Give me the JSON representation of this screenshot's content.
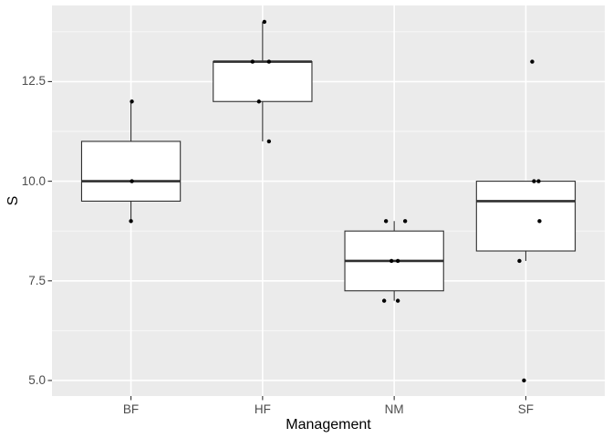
{
  "chart_data": {
    "type": "boxplot",
    "title": "",
    "x_axis": {
      "title": "Management",
      "categories": [
        "BF",
        "HF",
        "NM",
        "SF"
      ]
    },
    "y_axis": {
      "title": "S",
      "tick_labels": [
        "5.0",
        "7.5",
        "10.0",
        "12.5"
      ],
      "tick_values": [
        5.0,
        7.5,
        10.0,
        12.5
      ],
      "minor_tick_values": [
        6.25,
        8.75,
        11.25,
        13.75
      ],
      "range": [
        4.61,
        14.41
      ]
    },
    "legend": "none",
    "grid": "major-and-minor",
    "series": [
      {
        "category": "BF",
        "whisker_low": 9,
        "q1": 9.5,
        "median": 10,
        "q3": 11,
        "whisker_high": 12,
        "outliers": [],
        "points": [
          {
            "dx": 1,
            "v": 12
          },
          {
            "dx": 1,
            "v": 10
          },
          {
            "dx": 0,
            "v": 9
          }
        ]
      },
      {
        "category": "HF",
        "whisker_low": 11,
        "q1": 12,
        "median": 13,
        "q3": 13,
        "whisker_high": 14,
        "outliers": [],
        "points": [
          {
            "dx": 2,
            "v": 14
          },
          {
            "dx": -11,
            "v": 13
          },
          {
            "dx": 7,
            "v": 13
          },
          {
            "dx": -4,
            "v": 12
          },
          {
            "dx": 7,
            "v": 11
          }
        ]
      },
      {
        "category": "NM",
        "whisker_low": 7,
        "q1": 7.25,
        "median": 8,
        "q3": 8.75,
        "whisker_high": 9,
        "outliers": [],
        "points": [
          {
            "dx": -9,
            "v": 9
          },
          {
            "dx": 12,
            "v": 9
          },
          {
            "dx": -3,
            "v": 8
          },
          {
            "dx": 4,
            "v": 8
          },
          {
            "dx": -11,
            "v": 7
          },
          {
            "dx": 4,
            "v": 7
          }
        ]
      },
      {
        "category": "SF",
        "whisker_low": 8,
        "q1": 8.25,
        "median": 9.5,
        "q3": 10,
        "whisker_high": 10,
        "outliers": [
          13,
          5
        ],
        "points": [
          {
            "dx": 7,
            "v": 13
          },
          {
            "dx": 9,
            "v": 10
          },
          {
            "dx": 14,
            "v": 10
          },
          {
            "dx": 15,
            "v": 9
          },
          {
            "dx": -7,
            "v": 8
          },
          {
            "dx": -2,
            "v": 5
          }
        ]
      }
    ],
    "colors": {
      "figure_background": "#FFFFFF",
      "panel_background": "#EBEBEB",
      "grid_major": "#FFFFFF",
      "grid_minor": "#FFFFFF",
      "box_outline": "#2F2F2F",
      "box_fill": "#FFFFFF",
      "median_color": "#2F2F2F",
      "point_color": "#000000",
      "tick_color": "#333333",
      "tick_label_color": "#4D4D4D",
      "axis_title_color": "#000000"
    }
  }
}
